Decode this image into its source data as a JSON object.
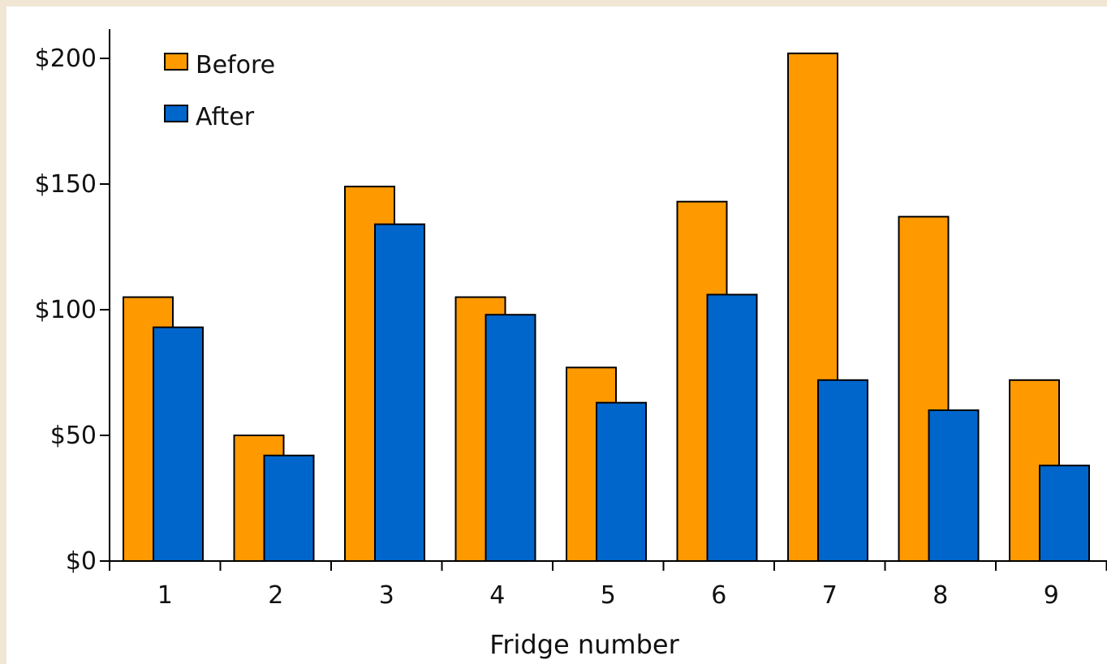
{
  "colors": {
    "background": "#f1e6d4",
    "plot_background": "#ffffff",
    "before": "#ff9900",
    "after": "#0066cc",
    "bar_outline": "#000000",
    "axis": "#000000"
  },
  "chart_data": {
    "type": "bar",
    "title": "",
    "xlabel": "Fridge number",
    "ylabel": "",
    "categories": [
      "1",
      "2",
      "3",
      "4",
      "5",
      "6",
      "7",
      "8",
      "9"
    ],
    "series": [
      {
        "name": "Before",
        "values": [
          105,
          50,
          149,
          105,
          77,
          143,
          202,
          137,
          72
        ]
      },
      {
        "name": "After",
        "values": [
          93,
          42,
          134,
          98,
          63,
          106,
          72,
          60,
          38
        ]
      }
    ],
    "ylim": [
      0,
      200
    ],
    "yticks": [
      0,
      50,
      100,
      150,
      200
    ],
    "ytick_labels": [
      "$0",
      "$50",
      "$100",
      "$150",
      "$200"
    ],
    "legend_position": "top-left",
    "grid": false
  }
}
